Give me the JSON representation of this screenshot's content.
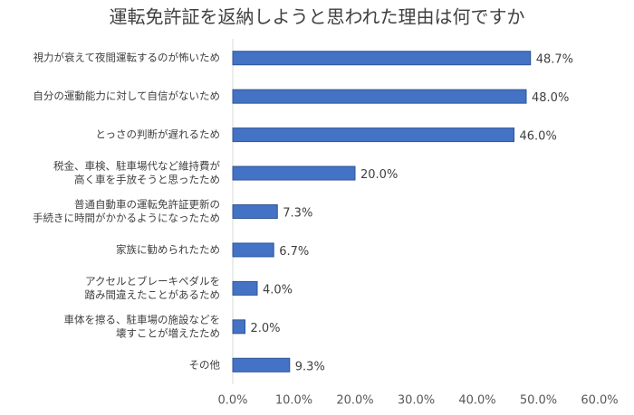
{
  "chart_data": {
    "type": "bar",
    "orientation": "horizontal",
    "title": "運転免許証を返納しようと思われた理由は何ですか",
    "categories": [
      [
        "視力が衰えて夜間運転するのが怖いため"
      ],
      [
        "自分の運動能力に対して自信がないため"
      ],
      [
        "とっさの判断が遅れるため"
      ],
      [
        "税金、車検、駐車場代など維持費が",
        "高く車を手放そうと思ったため"
      ],
      [
        "普通自動車の運転免許証更新の",
        "手続きに時間がかかるようになったため"
      ],
      [
        "家族に勧められたため"
      ],
      [
        "アクセルとブレーキペダルを",
        "踏み間違えたことがあるため"
      ],
      [
        "車体を擦る、駐車場の施設などを",
        "壊すことが増えたため"
      ],
      [
        "その他"
      ]
    ],
    "values": [
      48.7,
      48.0,
      46.0,
      20.0,
      7.3,
      6.7,
      4.0,
      2.0,
      9.3
    ],
    "value_labels": [
      "48.7%",
      "48.0%",
      "46.0%",
      "20.0%",
      "7.3%",
      "6.7%",
      "4.0%",
      "2.0%",
      "9.3%"
    ],
    "color": "#4472c4",
    "xlim": [
      0,
      60
    ],
    "xticks": [
      {
        "value": 0,
        "label": "0.0%"
      },
      {
        "value": 10,
        "label": "10.0%"
      },
      {
        "value": 20,
        "label": "20.0%"
      },
      {
        "value": 30,
        "label": "30.0%"
      },
      {
        "value": 40,
        "label": "40.0%"
      },
      {
        "value": 50,
        "label": "50.0%"
      },
      {
        "value": 60,
        "label": "60.0%"
      }
    ],
    "grid": false
  }
}
